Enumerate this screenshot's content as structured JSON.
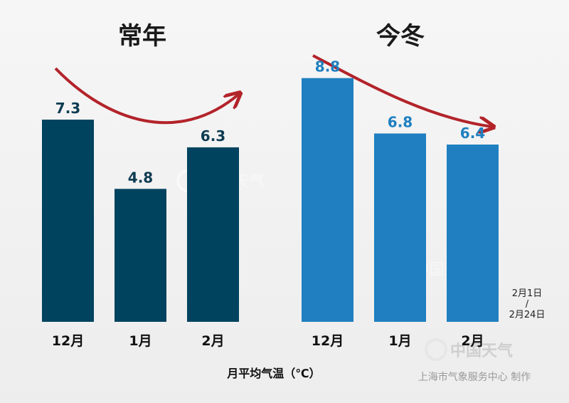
{
  "colors": {
    "normal_bar": "#00435f",
    "current_bar": "#1f7fc0",
    "normal_label": "#0d3b52",
    "current_label": "#1f7fc0",
    "arrow": "#b3232a"
  },
  "chart_data": [
    {
      "type": "bar",
      "title": "常年",
      "categories": [
        "12月",
        "1月",
        "2月"
      ],
      "values": [
        7.3,
        4.8,
        6.3
      ],
      "ylabel": "",
      "ylim": [
        0,
        10
      ],
      "trend": "down-then-up"
    },
    {
      "type": "bar",
      "title": "今冬",
      "categories": [
        "12月",
        "1月",
        "2月"
      ],
      "values": [
        8.8,
        6.8,
        6.4
      ],
      "ylabel": "",
      "ylim": [
        0,
        10
      ],
      "trend": "downward",
      "note": [
        "2月1日",
        "/",
        "2月24日"
      ]
    }
  ],
  "xlabel": "月平均气温（℃）",
  "credit": "上海市气象服务中心 制作",
  "watermark": "中国天气"
}
